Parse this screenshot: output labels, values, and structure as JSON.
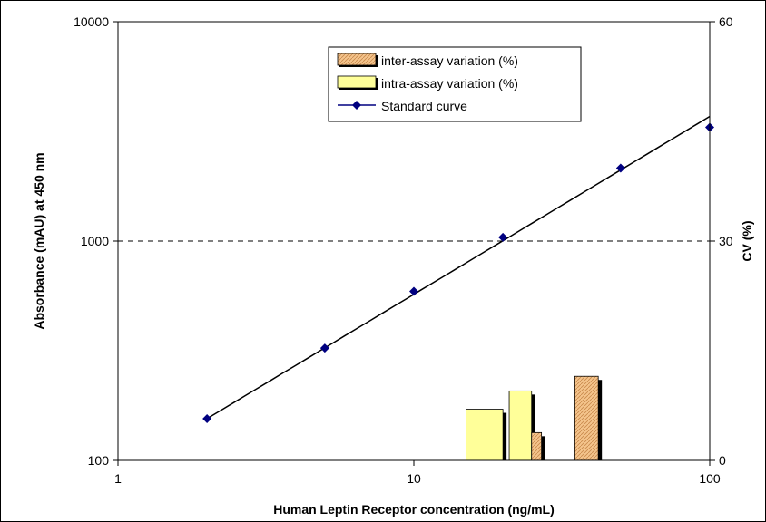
{
  "chart_data": {
    "type": "bar+line",
    "title": "",
    "xlabel": "Human Leptin Receptor concentration (ng/mL)",
    "ylabel_left": "Absorbance (mAU) at 450 nm",
    "ylabel_right": "CV (%)",
    "x_scale": "log",
    "y_left_scale": "log",
    "xlim": [
      1,
      100
    ],
    "ylim_left": [
      100,
      10000
    ],
    "ylim_right": [
      0,
      60
    ],
    "x_ticks": [
      "1",
      "10",
      "100"
    ],
    "y_left_ticks": [
      "100",
      "1000",
      "10000"
    ],
    "y_right_ticks": [
      "0",
      "30",
      "60"
    ],
    "grid": "dashed horizontal line at 1000 / 30",
    "legend_position": "top-center",
    "standard_curve": {
      "name": "Standard curve",
      "color": "#000080",
      "x": [
        2,
        5,
        10,
        20,
        50,
        100
      ],
      "y": [
        155,
        325,
        590,
        1040,
        2150,
        3300
      ]
    },
    "fit_line": {
      "x": [
        2,
        100
      ],
      "y": [
        155,
        3700
      ]
    },
    "intra_assay": {
      "name": "intra-assay variation (%)",
      "color": "#ffff99",
      "bars": [
        {
          "x_left": 15,
          "x_right": 20,
          "value": 7
        },
        {
          "x_left": 21,
          "x_right": 25,
          "value": 9.5
        }
      ]
    },
    "inter_assay": {
      "name": "inter-assay variation (%)",
      "color": "#f4c48c",
      "bars": [
        {
          "x_left": 25,
          "x_right": 27,
          "value": 3.8
        },
        {
          "x_left": 35,
          "x_right": 42,
          "value": 11.5
        }
      ]
    }
  }
}
